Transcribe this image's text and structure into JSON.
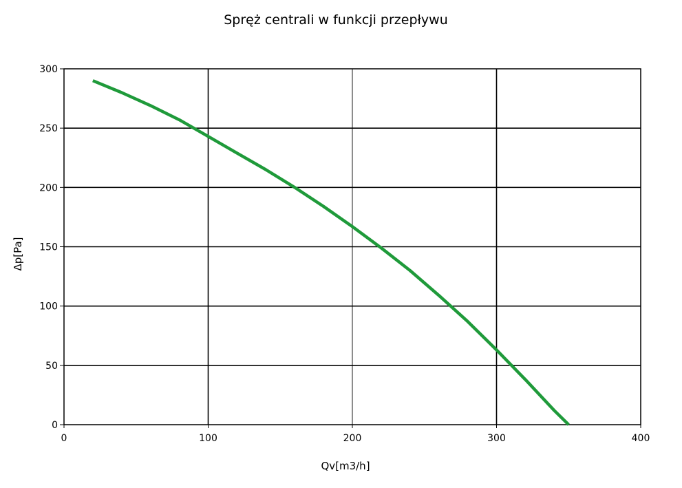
{
  "chart_data": {
    "type": "line",
    "title": "Spręż centrali w funkcji przepływu",
    "xlabel": "Qv[m3/h]",
    "ylabel": "Δp[Pa]",
    "xlim": [
      0,
      400
    ],
    "ylim": [
      0,
      300
    ],
    "xticks": [
      0,
      100,
      200,
      300,
      400
    ],
    "yticks": [
      0,
      50,
      100,
      150,
      200,
      250,
      300
    ],
    "grid": true,
    "legend": "none",
    "series": [
      {
        "color": "#1f9a3a",
        "x": [
          20,
          40,
          60,
          80,
          100,
          120,
          140,
          160,
          180,
          200,
          220,
          240,
          260,
          280,
          300,
          320,
          340,
          350
        ],
        "y": [
          290,
          280,
          269,
          257,
          243,
          229,
          215,
          200,
          184,
          167,
          149,
          130,
          109,
          87,
          63,
          38,
          12,
          0
        ]
      }
    ]
  }
}
